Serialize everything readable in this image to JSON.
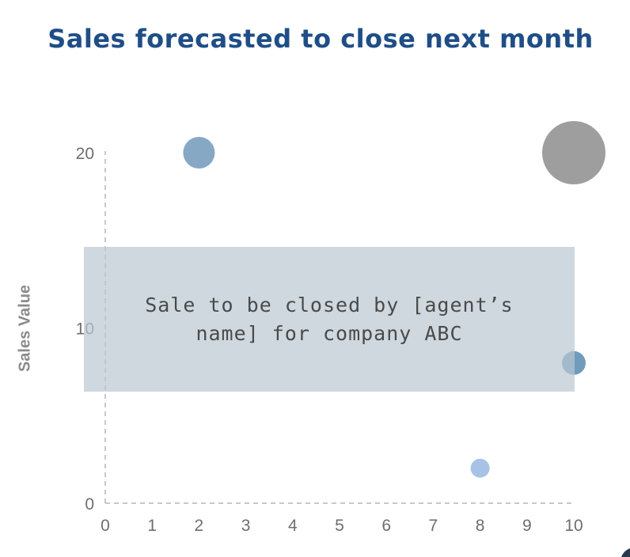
{
  "chart_data": {
    "type": "scatter",
    "title": "Sales forecasted to close next month",
    "xlabel": "",
    "ylabel": "Sales Value",
    "xlim": [
      0,
      10
    ],
    "ylim": [
      0,
      20
    ],
    "x_ticks": [
      0,
      1,
      2,
      3,
      4,
      5,
      6,
      7,
      8,
      9,
      10
    ],
    "y_ticks": [
      0,
      10,
      20
    ],
    "grid": false,
    "points": [
      {
        "x": 2,
        "y": 20,
        "size": 20,
        "color": "#86a8c4"
      },
      {
        "x": 10,
        "y": 20,
        "size": 40,
        "color": "#9e9e9e"
      },
      {
        "x": 10,
        "y": 8,
        "size": 15,
        "color": "#6f9cbc"
      },
      {
        "x": 8,
        "y": 2,
        "size": 12,
        "color": "#a6c3e6"
      }
    ],
    "annotation": {
      "text": "Sale to be closed by [agent’s name] for company ABC"
    }
  }
}
